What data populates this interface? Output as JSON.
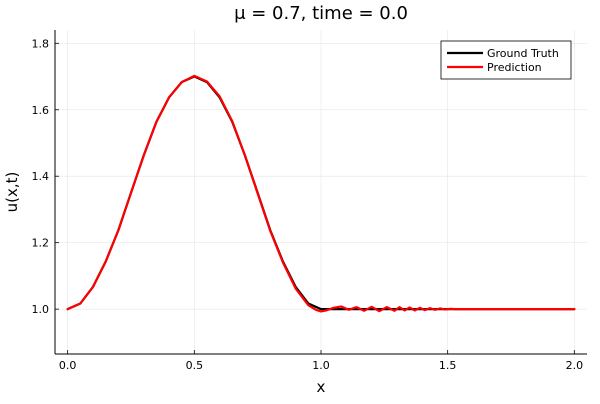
{
  "chart_data": {
    "type": "line",
    "title": "μ = 0.7, time = 0.0",
    "xlabel": "x",
    "ylabel": "u(x,t)",
    "xlim": [
      -0.05,
      2.05
    ],
    "ylim": [
      0.865,
      1.84
    ],
    "xticks": [
      0.0,
      0.5,
      1.0,
      1.5,
      2.0
    ],
    "xtick_labels": [
      "0.0",
      "0.5",
      "1.0",
      "1.5",
      "2.0"
    ],
    "yticks": [
      1.0,
      1.2,
      1.4,
      1.6,
      1.8
    ],
    "ytick_labels": [
      "1.0",
      "1.2",
      "1.4",
      "1.6",
      "1.8"
    ],
    "grid": true,
    "legend_position": "top-right",
    "series": [
      {
        "name": "Ground Truth",
        "color": "#000000",
        "x": [
          0.0,
          0.05,
          0.1,
          0.15,
          0.2,
          0.25,
          0.3,
          0.35,
          0.4,
          0.45,
          0.5,
          0.55,
          0.6,
          0.65,
          0.7,
          0.75,
          0.8,
          0.85,
          0.9,
          0.95,
          1.0,
          1.5,
          2.0
        ],
        "y": [
          1.0,
          1.017,
          1.067,
          1.143,
          1.237,
          1.35,
          1.462,
          1.563,
          1.637,
          1.683,
          1.7,
          1.683,
          1.637,
          1.563,
          1.462,
          1.35,
          1.237,
          1.143,
          1.067,
          1.017,
          1.0,
          1.0,
          1.0
        ]
      },
      {
        "name": "Prediction",
        "color": "#ff0000",
        "x": [
          0.0,
          0.05,
          0.1,
          0.15,
          0.2,
          0.25,
          0.3,
          0.35,
          0.4,
          0.45,
          0.5,
          0.55,
          0.6,
          0.65,
          0.7,
          0.75,
          0.8,
          0.85,
          0.9,
          0.95,
          0.98,
          1.0,
          1.02,
          1.05,
          1.08,
          1.11,
          1.14,
          1.17,
          1.2,
          1.23,
          1.26,
          1.29,
          1.31,
          1.33,
          1.35,
          1.37,
          1.39,
          1.41,
          1.43,
          1.45,
          1.47,
          1.49,
          1.51,
          1.53,
          1.55,
          1.6,
          1.8,
          2.0
        ],
        "y": [
          1.0,
          1.017,
          1.067,
          1.143,
          1.237,
          1.35,
          1.462,
          1.563,
          1.637,
          1.683,
          1.702,
          1.685,
          1.64,
          1.565,
          1.462,
          1.348,
          1.235,
          1.14,
          1.062,
          1.012,
          0.998,
          0.993,
          0.996,
          1.004,
          1.008,
          0.998,
          1.006,
          0.995,
          1.007,
          0.994,
          1.006,
          0.995,
          1.006,
          0.996,
          1.005,
          0.996,
          1.004,
          0.997,
          1.003,
          0.998,
          1.002,
          0.999,
          1.001,
          1.0,
          1.0,
          1.0,
          1.0,
          1.0
        ]
      }
    ]
  }
}
